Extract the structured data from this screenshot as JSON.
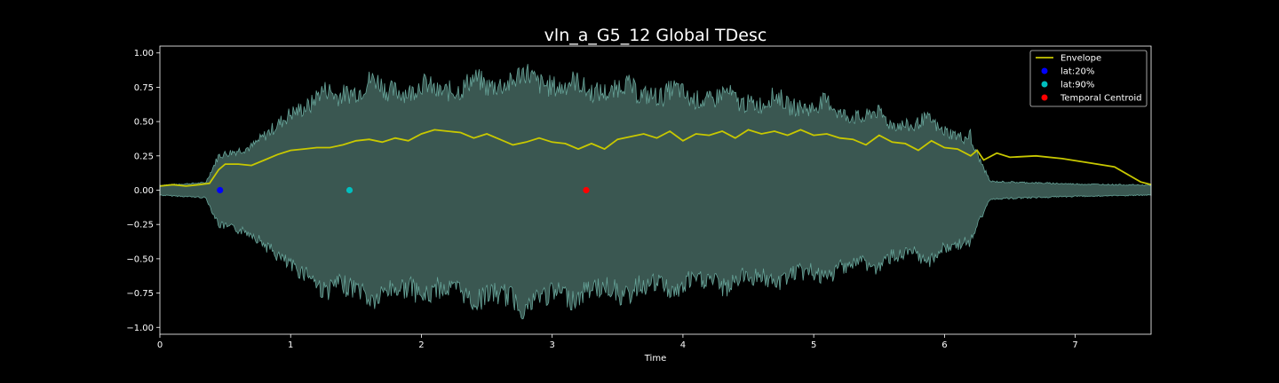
{
  "chart_data": {
    "type": "line",
    "title": "vln_a_G5_12 Global TDesc",
    "xlabel": "Time",
    "ylabel": "",
    "xlim": [
      0,
      7.58
    ],
    "ylim": [
      -1.05,
      1.05
    ],
    "x_ticks": [
      0,
      1,
      2,
      3,
      4,
      5,
      6,
      7
    ],
    "y_ticks": [
      -1.0,
      -0.75,
      -0.5,
      -0.25,
      0.0,
      0.25,
      0.5,
      0.75,
      1.0
    ],
    "x_tick_labels": [
      "0",
      "1",
      "2",
      "3",
      "4",
      "5",
      "6",
      "7"
    ],
    "y_tick_labels": [
      "−1.00",
      "−0.75",
      "−0.50",
      "−0.25",
      "0.00",
      "0.25",
      "0.50",
      "0.75",
      "1.00"
    ],
    "legend_position": "top-right",
    "grid": false,
    "waveform": {
      "color": "#66a398",
      "fill_color": "#3a5751",
      "amplitude_profile": [
        {
          "t": 0.0,
          "a": 0.04
        },
        {
          "t": 0.35,
          "a": 0.06
        },
        {
          "t": 0.45,
          "a": 0.28
        },
        {
          "t": 0.7,
          "a": 0.35
        },
        {
          "t": 1.0,
          "a": 0.62
        },
        {
          "t": 1.3,
          "a": 0.75
        },
        {
          "t": 1.6,
          "a": 0.82
        },
        {
          "t": 2.0,
          "a": 0.78
        },
        {
          "t": 2.4,
          "a": 0.82
        },
        {
          "t": 2.8,
          "a": 0.88
        },
        {
          "t": 3.2,
          "a": 0.8
        },
        {
          "t": 3.6,
          "a": 0.78
        },
        {
          "t": 4.0,
          "a": 0.74
        },
        {
          "t": 4.5,
          "a": 0.7
        },
        {
          "t": 5.0,
          "a": 0.66
        },
        {
          "t": 5.5,
          "a": 0.55
        },
        {
          "t": 6.0,
          "a": 0.48
        },
        {
          "t": 6.2,
          "a": 0.4
        },
        {
          "t": 6.35,
          "a": 0.07
        },
        {
          "t": 7.0,
          "a": 0.05
        },
        {
          "t": 7.58,
          "a": 0.04
        }
      ]
    },
    "series": [
      {
        "name": "Envelope",
        "kind": "line",
        "color": "#c8c800",
        "x": [
          0.0,
          0.1,
          0.2,
          0.3,
          0.38,
          0.45,
          0.5,
          0.6,
          0.7,
          0.8,
          0.9,
          1.0,
          1.1,
          1.2,
          1.3,
          1.4,
          1.5,
          1.6,
          1.7,
          1.8,
          1.9,
          2.0,
          2.1,
          2.2,
          2.3,
          2.4,
          2.5,
          2.6,
          2.7,
          2.8,
          2.9,
          3.0,
          3.1,
          3.2,
          3.3,
          3.4,
          3.5,
          3.6,
          3.7,
          3.8,
          3.9,
          4.0,
          4.1,
          4.2,
          4.3,
          4.4,
          4.5,
          4.6,
          4.7,
          4.8,
          4.9,
          5.0,
          5.1,
          5.2,
          5.3,
          5.4,
          5.5,
          5.6,
          5.7,
          5.8,
          5.9,
          6.0,
          6.1,
          6.2,
          6.25,
          6.3,
          6.4,
          6.5,
          6.7,
          6.9,
          7.1,
          7.3,
          7.5,
          7.58
        ],
        "y": [
          0.03,
          0.04,
          0.03,
          0.04,
          0.05,
          0.15,
          0.19,
          0.19,
          0.18,
          0.22,
          0.26,
          0.29,
          0.3,
          0.31,
          0.31,
          0.33,
          0.36,
          0.37,
          0.35,
          0.38,
          0.36,
          0.41,
          0.44,
          0.43,
          0.42,
          0.38,
          0.41,
          0.37,
          0.33,
          0.35,
          0.38,
          0.35,
          0.34,
          0.3,
          0.34,
          0.3,
          0.37,
          0.39,
          0.41,
          0.38,
          0.43,
          0.36,
          0.41,
          0.4,
          0.43,
          0.38,
          0.44,
          0.41,
          0.43,
          0.4,
          0.44,
          0.4,
          0.41,
          0.38,
          0.37,
          0.33,
          0.4,
          0.35,
          0.34,
          0.29,
          0.36,
          0.31,
          0.3,
          0.25,
          0.29,
          0.22,
          0.27,
          0.24,
          0.25,
          0.23,
          0.2,
          0.17,
          0.06,
          0.04
        ]
      },
      {
        "name": "lat:20%",
        "kind": "point",
        "color": "#0000ff",
        "x": [
          0.46
        ],
        "y": [
          0.0
        ]
      },
      {
        "name": "lat:90%",
        "kind": "point",
        "color": "#00bfbf",
        "x": [
          1.45
        ],
        "y": [
          0.0
        ]
      },
      {
        "name": "Temporal Centroid",
        "kind": "point",
        "color": "#ff0000",
        "x": [
          3.26
        ],
        "y": [
          0.0
        ]
      }
    ]
  }
}
